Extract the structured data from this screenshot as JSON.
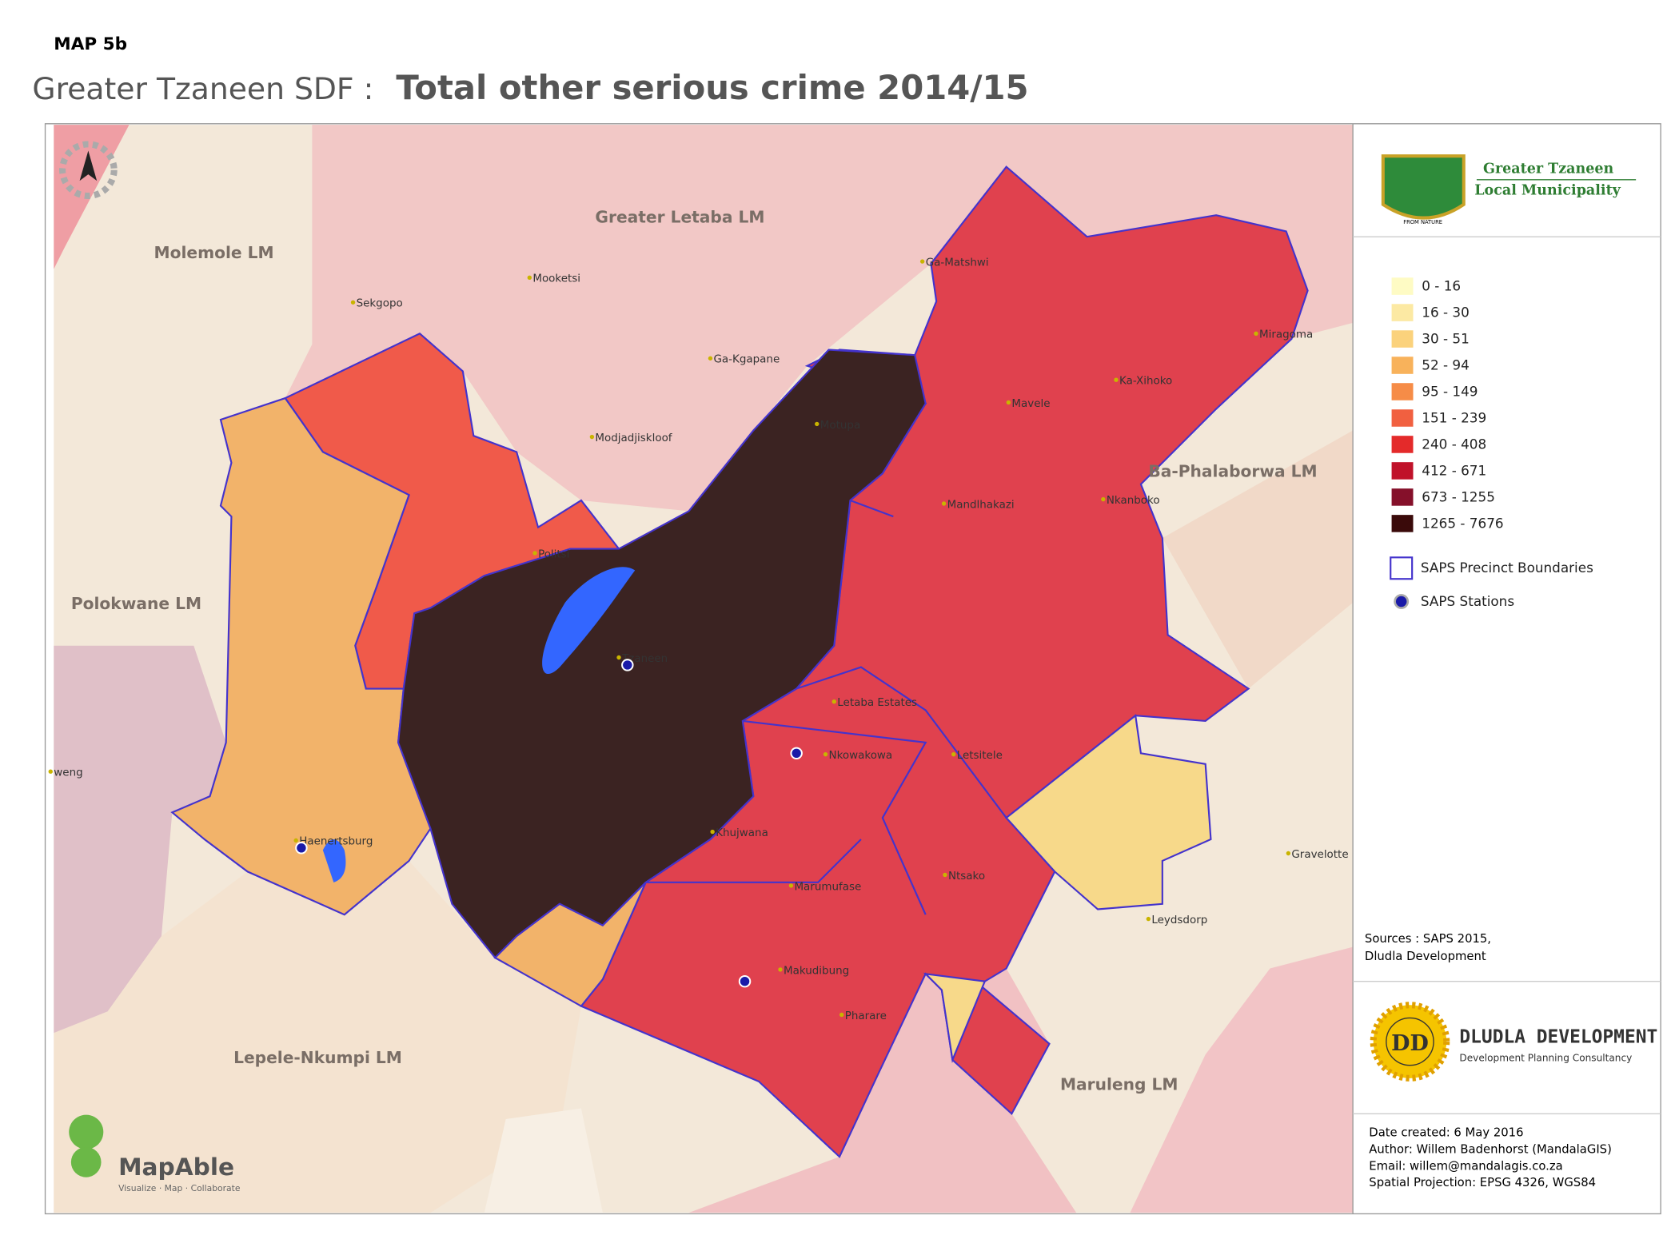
{
  "map_label": "MAP 5b",
  "title": {
    "prefix": "Greater Tzaneen SDF :",
    "main": "Total other serious crime 2014/15"
  },
  "regions": [
    "Greater Letaba LM",
    "Molemole LM",
    "Polokwane LM",
    "Ba-Phalaborwa LM",
    "Lepele-Nkumpi LM",
    "Maruleng LM"
  ],
  "places": [
    "Mooketsi",
    "Sekgopo",
    "Ga-Kgapane",
    "Modjadjiskloof",
    "Ga-Matshwi",
    "Miragoma",
    "Ka-Xihoko",
    "Mavele",
    "Motupa",
    "Mandlhakazi",
    "Nkanboko",
    "Politsi",
    "Tzaneen",
    "Letaba Estates",
    "Nkowakowa",
    "Letsitele",
    "Khujwana",
    "Haenertsburg",
    "Marumufase",
    "Ntsako",
    "Gravelotte",
    "Leydsdorp",
    "Makudibung",
    "Pharare",
    "weng"
  ],
  "legend": {
    "classes": [
      {
        "label": "0 - 16",
        "color": "#fefbc4"
      },
      {
        "label": "16 - 30",
        "color": "#fce9a3"
      },
      {
        "label": "30 - 51",
        "color": "#fbd27c"
      },
      {
        "label": "52 - 94",
        "color": "#f8b25b"
      },
      {
        "label": "95 - 149",
        "color": "#f68c47"
      },
      {
        "label": "151 - 239",
        "color": "#f16040"
      },
      {
        "label": "240 - 408",
        "color": "#e42a2a"
      },
      {
        "label": "412 - 671",
        "color": "#c0122a"
      },
      {
        "label": "673 - 1255",
        "color": "#85102a"
      },
      {
        "label": "1265 - 7676",
        "color": "#3a0a0a"
      }
    ],
    "boundaries": "SAPS Precinct Boundaries",
    "stations": "SAPS Stations"
  },
  "logo": {
    "line1": "Greater Tzaneen",
    "line2": "Local Municipality",
    "motto": "FROM NATURE"
  },
  "sources": [
    "Sources : SAPS 2015,",
    "Dludla Development"
  ],
  "dludla": {
    "mark": "DD",
    "name": "DLUDLA DEVELOPMENT",
    "tagline": "Development  Planning Consultancy"
  },
  "credits": [
    "Date created:  6 May 2016",
    "Author: Willem Badenhorst (MandalaGIS)",
    "Email: willem@mandalagis.co.za",
    "Spatial Projection:  EPSG 4326, WGS84"
  ],
  "mapable": {
    "name": "MapAble",
    "tagline": "Visualize · Map · Collaborate"
  }
}
